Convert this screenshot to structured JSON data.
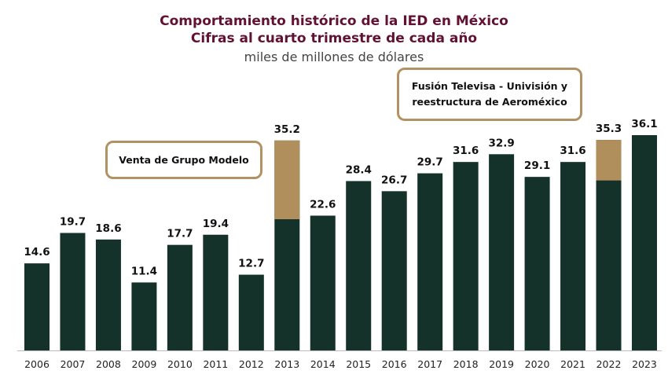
{
  "chart_data": {
    "type": "bar",
    "title": "Comportamiento histórico de la IED en México",
    "subtitle": "Cifras al cuarto trimestre de cada año",
    "unit": "miles de millones de dólares",
    "categories": [
      "2006",
      "2007",
      "2008",
      "2009",
      "2010",
      "2011",
      "2012",
      "2013",
      "2014",
      "2015",
      "2016",
      "2017",
      "2018",
      "2019",
      "2020",
      "2021",
      "2022",
      "2023"
    ],
    "values": [
      14.6,
      19.7,
      18.6,
      11.4,
      17.7,
      19.4,
      12.7,
      35.2,
      22.6,
      28.4,
      26.7,
      29.7,
      31.6,
      32.9,
      29.1,
      31.6,
      35.3,
      36.1
    ],
    "extraordinary": {
      "2013": 13.2,
      "2022": 6.8
    },
    "annotations": [
      "Venta de Grupo Modelo",
      "Fusión Televisa - Univisión y reestructura de Aeroméxico"
    ],
    "ylim": [
      0,
      36.1
    ],
    "grid": false,
    "colors": {
      "base": "#14312a",
      "extraordinary": "#b08f5c",
      "title": "#611232"
    }
  }
}
